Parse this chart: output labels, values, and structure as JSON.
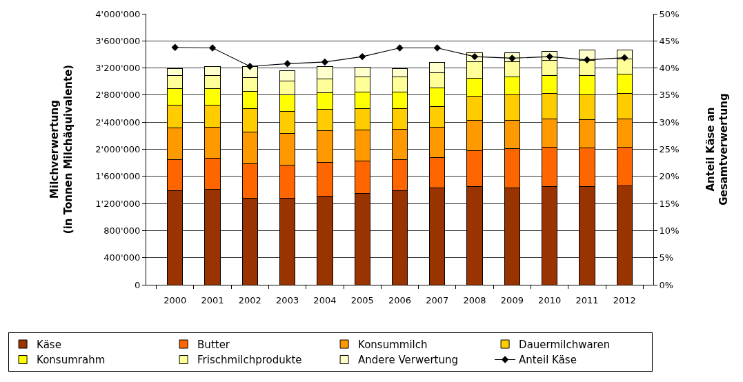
{
  "chart_data": {
    "type": "bar",
    "stacked": true,
    "categories": [
      "2000",
      "2001",
      "2002",
      "2003",
      "2004",
      "2005",
      "2006",
      "2007",
      "2008",
      "2009",
      "2010",
      "2011",
      "2012"
    ],
    "series": [
      {
        "name": "Käse",
        "color": "#993300",
        "values": [
          1390000,
          1410000,
          1280000,
          1280000,
          1310000,
          1350000,
          1390000,
          1430000,
          1450000,
          1430000,
          1450000,
          1450000,
          1460000
        ]
      },
      {
        "name": "Butter",
        "color": "#ff6600",
        "values": [
          460000,
          460000,
          510000,
          490000,
          500000,
          480000,
          460000,
          450000,
          530000,
          580000,
          580000,
          570000,
          570000
        ]
      },
      {
        "name": "Konsummilch",
        "color": "#ff9900",
        "values": [
          470000,
          460000,
          460000,
          460000,
          460000,
          450000,
          450000,
          450000,
          450000,
          420000,
          420000,
          420000,
          420000
        ]
      },
      {
        "name": "Dauermilchwaren",
        "color": "#ffcc00",
        "values": [
          330000,
          320000,
          350000,
          330000,
          320000,
          320000,
          300000,
          300000,
          350000,
          370000,
          370000,
          360000,
          370000
        ]
      },
      {
        "name": "Konsumrahm",
        "color": "#ffff00",
        "values": [
          250000,
          250000,
          260000,
          240000,
          240000,
          240000,
          240000,
          280000,
          270000,
          270000,
          270000,
          290000,
          290000
        ]
      },
      {
        "name": "Frischmilchprodukte",
        "color": "#ffff99",
        "values": [
          190000,
          190000,
          200000,
          210000,
          210000,
          230000,
          230000,
          220000,
          240000,
          220000,
          220000,
          220000,
          220000
        ]
      },
      {
        "name": "Andere Verwertung",
        "color": "#ffffcc",
        "values": [
          100000,
          130000,
          160000,
          150000,
          180000,
          140000,
          120000,
          150000,
          130000,
          130000,
          140000,
          160000,
          140000
        ]
      },
      {
        "name": "Anteil Käse",
        "type": "line",
        "axis": "y2",
        "color": "#000000",
        "marker": "diamond",
        "line_style": "solid",
        "values": [
          43.8,
          43.7,
          40.3,
          40.8,
          41.1,
          42.1,
          43.7,
          43.7,
          42.1,
          41.8,
          42.1,
          41.5,
          41.9
        ]
      }
    ],
    "ylabel": "Milchverwertung\n(in Tonnen Milchäquivalente)",
    "y2label": "Anteil Käse an\nGesamtverwertung",
    "ylim": [
      0,
      4000000
    ],
    "yticks": [
      0,
      {
        "value": 400000,
        "label": "400'000"
      },
      {
        "value": 800000,
        "label": "800'000"
      },
      {
        "value": 1200000,
        "label": "1'200'000"
      },
      {
        "value": 1600000,
        "label": "1'600'000"
      },
      {
        "value": 2000000,
        "label": "2'000'000"
      },
      {
        "value": 2400000,
        "label": "2'400'000"
      },
      {
        "value": 2800000,
        "label": "2'800'000"
      },
      {
        "value": 3200000,
        "label": "3'200'000"
      },
      {
        "value": 3600000,
        "label": "3'600'000"
      },
      {
        "value": 4000000,
        "label": "4'000'000"
      }
    ],
    "y2lim": [
      0,
      50
    ],
    "y2ticks": [
      {
        "value": 0,
        "label": "0%"
      },
      {
        "value": 5,
        "label": "5%"
      },
      {
        "value": 10,
        "label": "10%"
      },
      {
        "value": 15,
        "label": "15%"
      },
      {
        "value": 20,
        "label": "20%"
      },
      {
        "value": 25,
        "label": "25%"
      },
      {
        "value": 30,
        "label": "30%"
      },
      {
        "value": 35,
        "label": "35%"
      },
      {
        "value": 40,
        "label": "40%"
      },
      {
        "value": 45,
        "label": "45%"
      },
      {
        "value": 50,
        "label": "50%"
      }
    ],
    "grid": "y",
    "legend": "bottom"
  }
}
